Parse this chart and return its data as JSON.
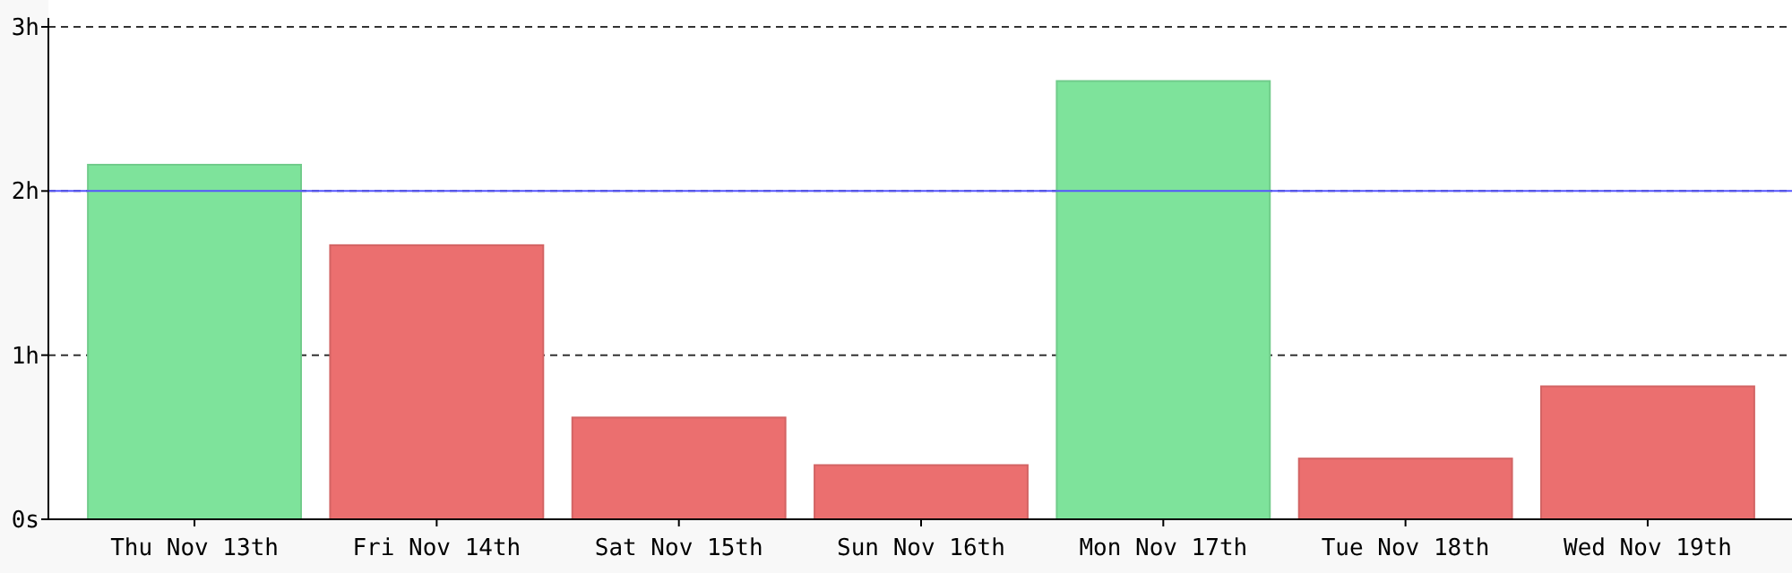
{
  "chart_data": {
    "type": "bar",
    "categories": [
      "Thu Nov 13th",
      "Fri Nov 14th",
      "Sat Nov 15th",
      "Sun Nov 16th",
      "Mon Nov 17th",
      "Tue Nov 18th",
      "Wed Nov 19th"
    ],
    "values": [
      2.16,
      1.67,
      0.62,
      0.33,
      2.67,
      0.37,
      0.81
    ],
    "colors": [
      "#7ee39b",
      "#eb6f6f",
      "#eb6f6f",
      "#eb6f6f",
      "#7ee39b",
      "#eb6f6f",
      "#eb6f6f"
    ],
    "ylim": [
      0,
      3
    ],
    "yticks": [
      {
        "value": 0,
        "label": "0s"
      },
      {
        "value": 1,
        "label": "1h"
      },
      {
        "value": 2,
        "label": "2h"
      },
      {
        "value": 3,
        "label": "3h"
      }
    ],
    "grid": "y",
    "ref_lines": [
      {
        "axis": "y",
        "value": 2,
        "color": "#5555ff"
      }
    ]
  }
}
